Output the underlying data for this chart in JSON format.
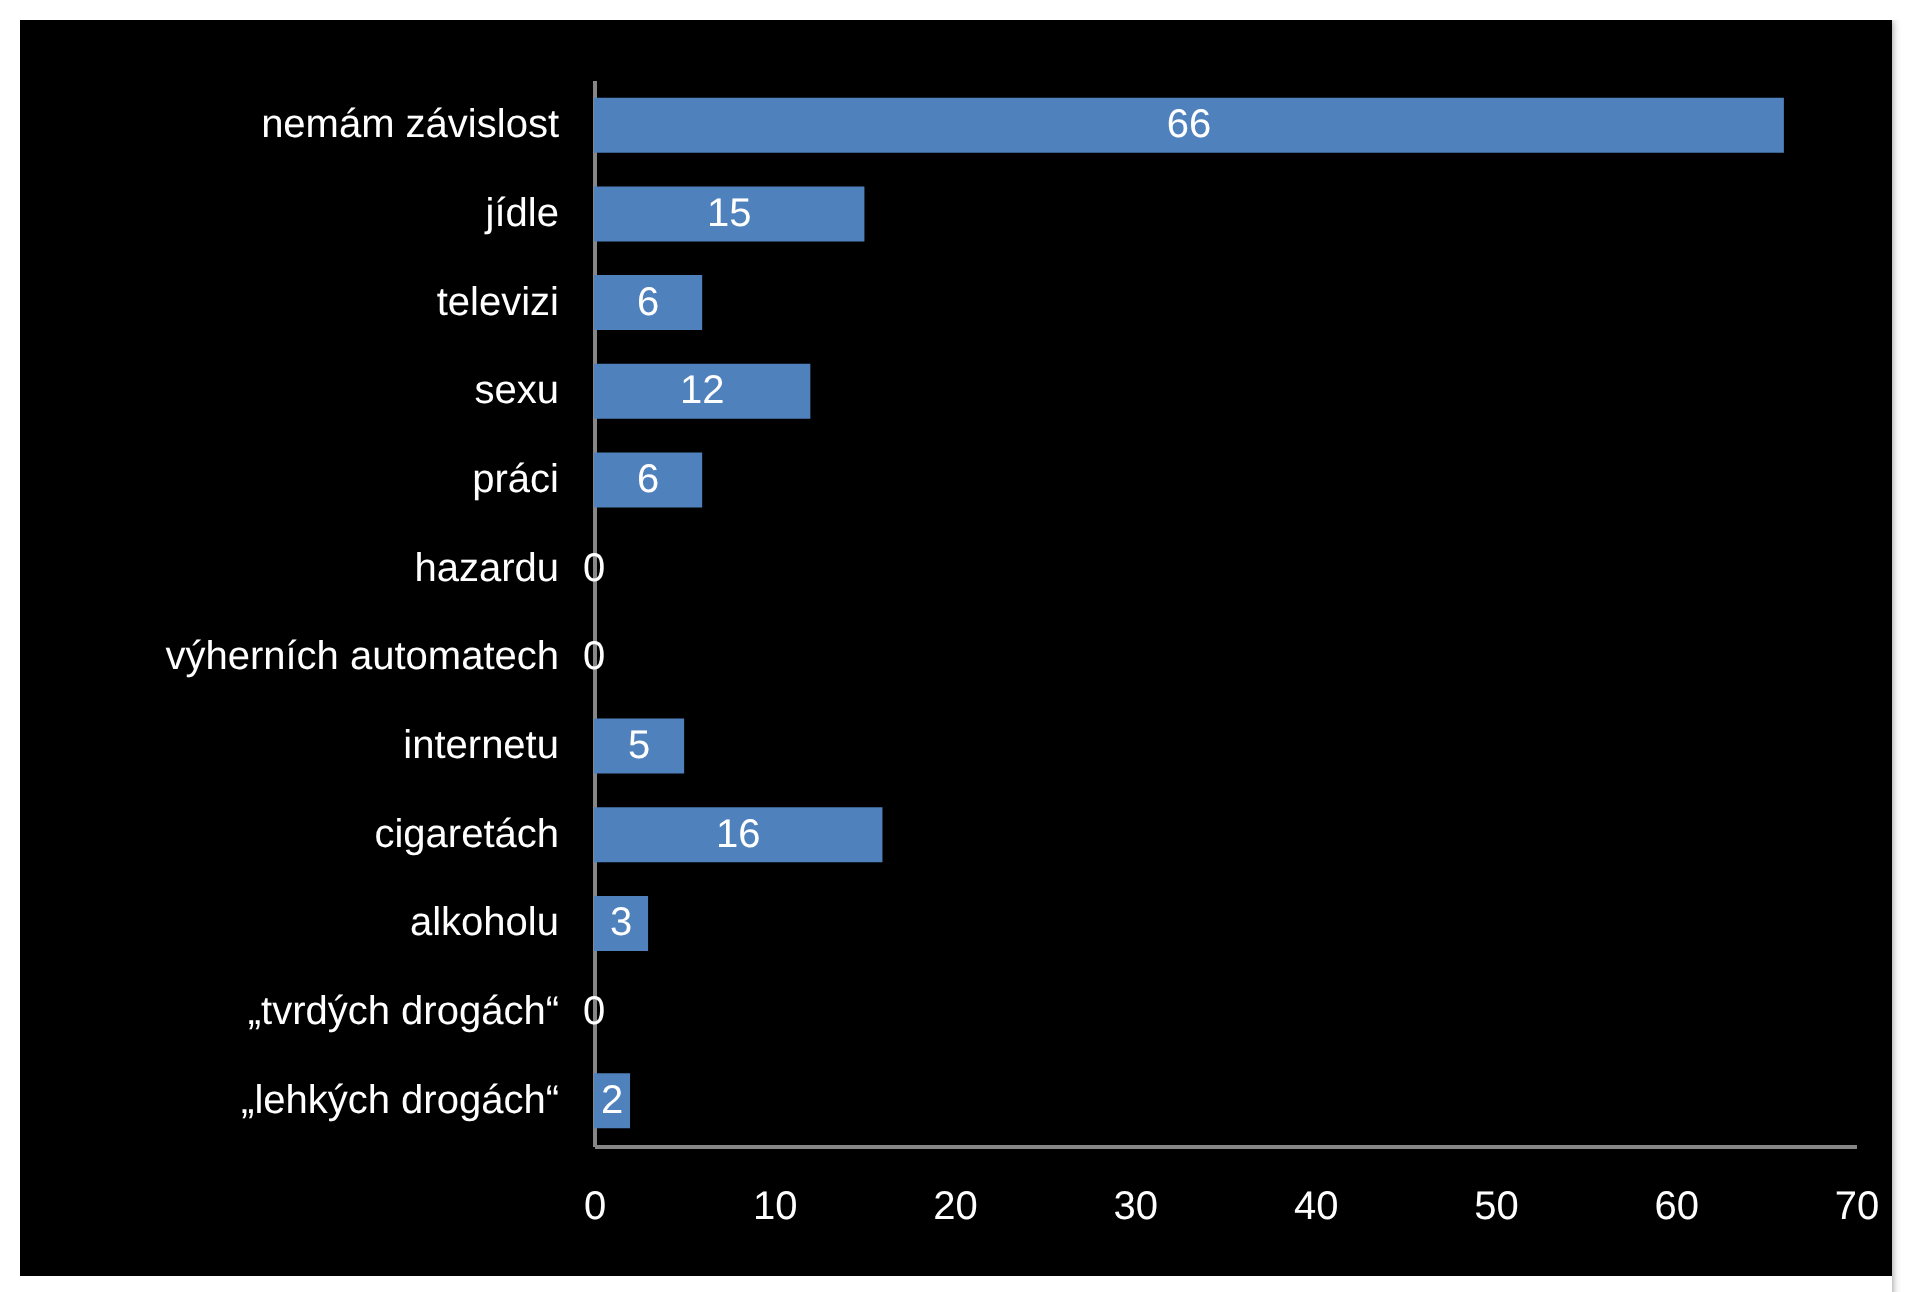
{
  "chart_data": {
    "type": "bar",
    "orientation": "horizontal",
    "categories": [
      "nemám závislost",
      "jídle",
      "televizi",
      "sexu",
      "práci",
      "hazardu",
      "výherních automatech",
      "internetu",
      "cigaretách",
      "alkoholu",
      "„tvrdých drogách“",
      "„lehkých drogách“"
    ],
    "values": [
      66,
      15,
      6,
      12,
      6,
      0,
      0,
      5,
      16,
      3,
      0,
      2
    ],
    "color": "#4f81bd",
    "data_labels": true,
    "xlim": [
      0,
      70
    ],
    "xticks": [
      0,
      10,
      20,
      30,
      40,
      50,
      60,
      70
    ]
  }
}
